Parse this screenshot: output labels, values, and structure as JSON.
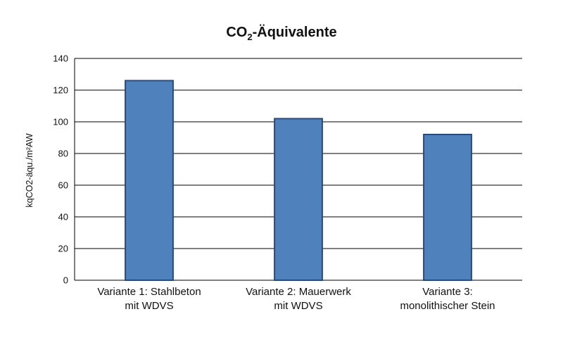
{
  "chart_data": {
    "type": "bar",
    "title_main": "CO",
    "title_sub": "2",
    "title_rest": "-Äquivalente",
    "ylabel": "kqCO2-äqu./m²AW",
    "categories": [
      [
        "Variante 1: Stahlbeton",
        "mit WDVS"
      ],
      [
        "Variante 2: Mauerwerk",
        "mit WDVS"
      ],
      [
        "Variante 3:",
        "monolithischer Stein"
      ]
    ],
    "values": [
      126,
      102,
      92
    ],
    "ylim": [
      0,
      140
    ],
    "yticks": [
      0,
      20,
      40,
      60,
      80,
      100,
      120,
      140
    ],
    "grid": true,
    "colors": {
      "bar_fill": "#4f81bd",
      "bar_stroke": "#2a4a7a",
      "grid": "#000000"
    }
  }
}
